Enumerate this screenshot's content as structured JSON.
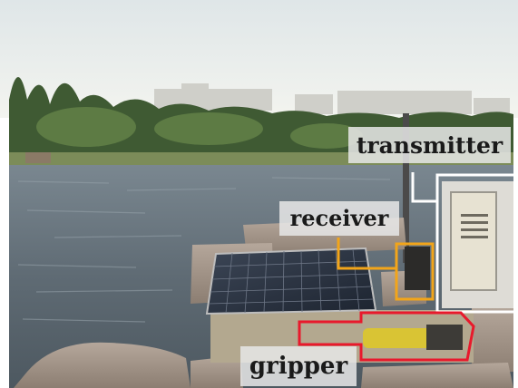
{
  "labels": {
    "transmitter": "transmitter",
    "receiver": "receiver",
    "gripper": "gripper"
  },
  "colors": {
    "transmitter_box": "#ffffff",
    "receiver_box": "#f2a51a",
    "gripper_box": "#e8192c"
  }
}
